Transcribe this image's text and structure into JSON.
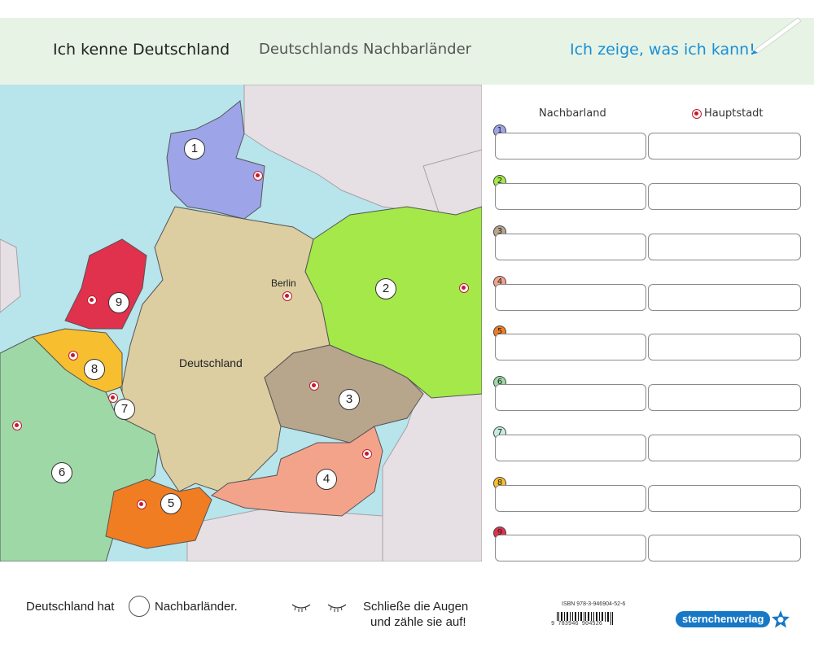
{
  "header": {
    "title": "Ich kenne Deutschland",
    "subtitle": "Deutschlands Nachbarländer",
    "accent": "Ich zeige, was ich kann!"
  },
  "map": {
    "labels": {
      "germany": "Deutschland",
      "berlin": "Berlin"
    },
    "countries": [
      {
        "n": "1",
        "color": "#9da4e8"
      },
      {
        "n": "2",
        "color": "#a4e84a"
      },
      {
        "n": "3",
        "color": "#b7a58c"
      },
      {
        "n": "4",
        "color": "#f4a38b"
      },
      {
        "n": "5",
        "color": "#f07d22"
      },
      {
        "n": "6",
        "color": "#9ed8a6"
      },
      {
        "n": "7",
        "color": "#c6ece3"
      },
      {
        "n": "8",
        "color": "#f7bf2f"
      },
      {
        "n": "9",
        "color": "#e0314d"
      }
    ]
  },
  "panel": {
    "col_country": "Nachbarland",
    "col_capital": "Hauptstadt",
    "rows": [
      {
        "n": "1",
        "color": "#9da4e8"
      },
      {
        "n": "2",
        "color": "#a4e84a"
      },
      {
        "n": "3",
        "color": "#b7a58c"
      },
      {
        "n": "4",
        "color": "#f4a38b"
      },
      {
        "n": "5",
        "color": "#f07d22"
      },
      {
        "n": "6",
        "color": "#9ed8a6"
      },
      {
        "n": "7",
        "color": "#c6ece3"
      },
      {
        "n": "8",
        "color": "#f7bf2f"
      },
      {
        "n": "9",
        "color": "#e0314d"
      }
    ]
  },
  "footer": {
    "count_before": "Deutschland hat",
    "count_after": "Nachbarländer.",
    "hint_line1": "Schließe die Augen",
    "hint_line2": "und zähle sie auf!",
    "isbn": "ISBN 978-3-946904-52-6",
    "barcode_digits": "9 783946 904526",
    "publisher": "sternchenverlag"
  }
}
